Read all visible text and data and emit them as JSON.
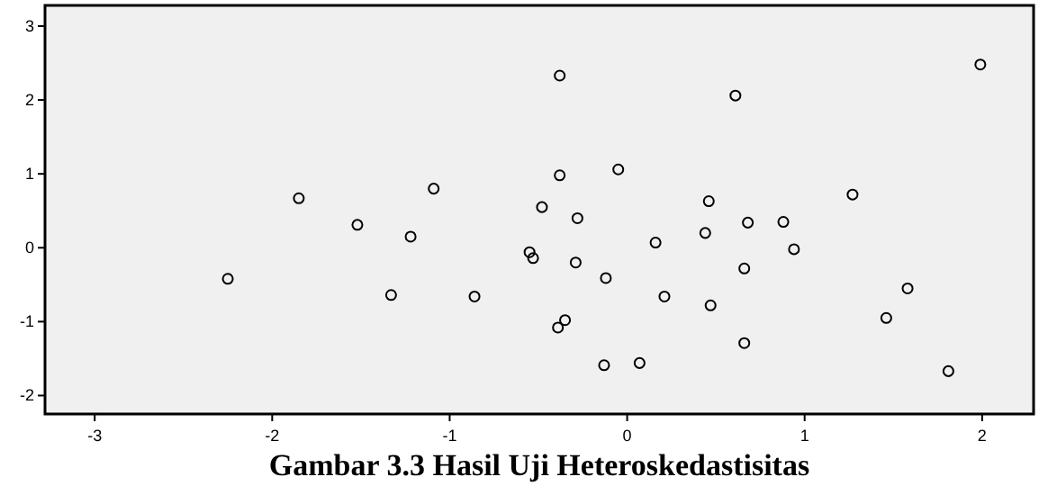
{
  "chart_data": {
    "type": "scatter",
    "title": "Gambar 3.3 Hasil Uji Heteroskedastisitas",
    "x": [
      -2.25,
      -1.85,
      -1.52,
      -1.09,
      -1.22,
      -1.33,
      -0.86,
      -0.55,
      -0.53,
      -0.38,
      0.61,
      1.99,
      -0.38,
      -0.05,
      -0.48,
      -0.28,
      0.46,
      1.27,
      0.68,
      0.88,
      0.44,
      0.16,
      0.94,
      -0.29,
      -0.12,
      0.66,
      0.21,
      0.47,
      1.58,
      1.46,
      -0.35,
      -0.39,
      0.66,
      -0.13,
      0.07,
      1.81
    ],
    "values": [
      -0.42,
      0.67,
      0.31,
      0.8,
      0.15,
      -0.64,
      -0.66,
      -0.06,
      -0.14,
      2.33,
      2.06,
      2.48,
      0.98,
      1.06,
      0.55,
      0.4,
      0.63,
      0.72,
      0.34,
      0.35,
      0.2,
      0.07,
      -0.02,
      -0.2,
      -0.41,
      -0.28,
      -0.66,
      -0.78,
      -0.55,
      -0.95,
      -0.98,
      -1.08,
      -1.29,
      -1.59,
      -1.56,
      -1.67
    ],
    "color": "#000000",
    "marker": "circle",
    "grid": false,
    "xlim": [
      -3.28,
      2.29
    ],
    "ylim": [
      -2.25,
      3.28
    ],
    "xticks": [
      -3,
      -2,
      -1,
      0,
      1,
      2
    ],
    "yticks": [
      -2,
      -1,
      0,
      1,
      2,
      3
    ]
  }
}
